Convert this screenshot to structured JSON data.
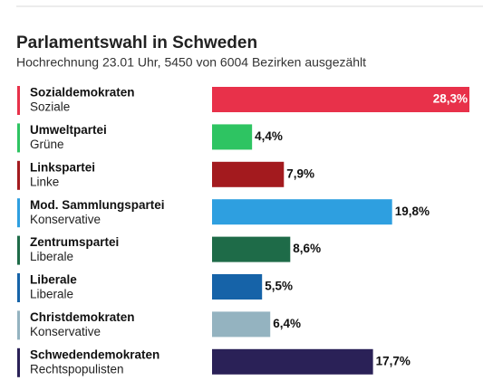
{
  "chart_data": {
    "type": "bar",
    "title": "Parlamentswahl in Schweden",
    "subtitle": "Hochrechnung 23.01 Uhr, 5450 von 6004 Bezirken ausgezählt",
    "categories": [
      "Sozialdemokraten",
      "Umweltpartei",
      "Linkspartei",
      "Mod. Sammlungspartei",
      "Zentrumspartei",
      "Liberale",
      "Christdemokraten",
      "Schwedendemokraten"
    ],
    "groups": [
      "Soziale",
      "Grüne",
      "Linke",
      "Konservative",
      "Liberale",
      "Liberale",
      "Konservative",
      "Rechtspopulisten"
    ],
    "values": [
      28.3,
      4.4,
      7.9,
      19.8,
      8.6,
      5.5,
      6.4,
      17.7
    ],
    "value_labels": [
      "28,3%",
      "4,4%",
      "7,9%",
      "19,8%",
      "8,6%",
      "5,5%",
      "6,4%",
      "17,7%"
    ],
    "colors": [
      "#e8314a",
      "#2ec462",
      "#a31a1e",
      "#2e9fe0",
      "#1e6b48",
      "#1663a8",
      "#94b3c0",
      "#2a2157"
    ]
  }
}
